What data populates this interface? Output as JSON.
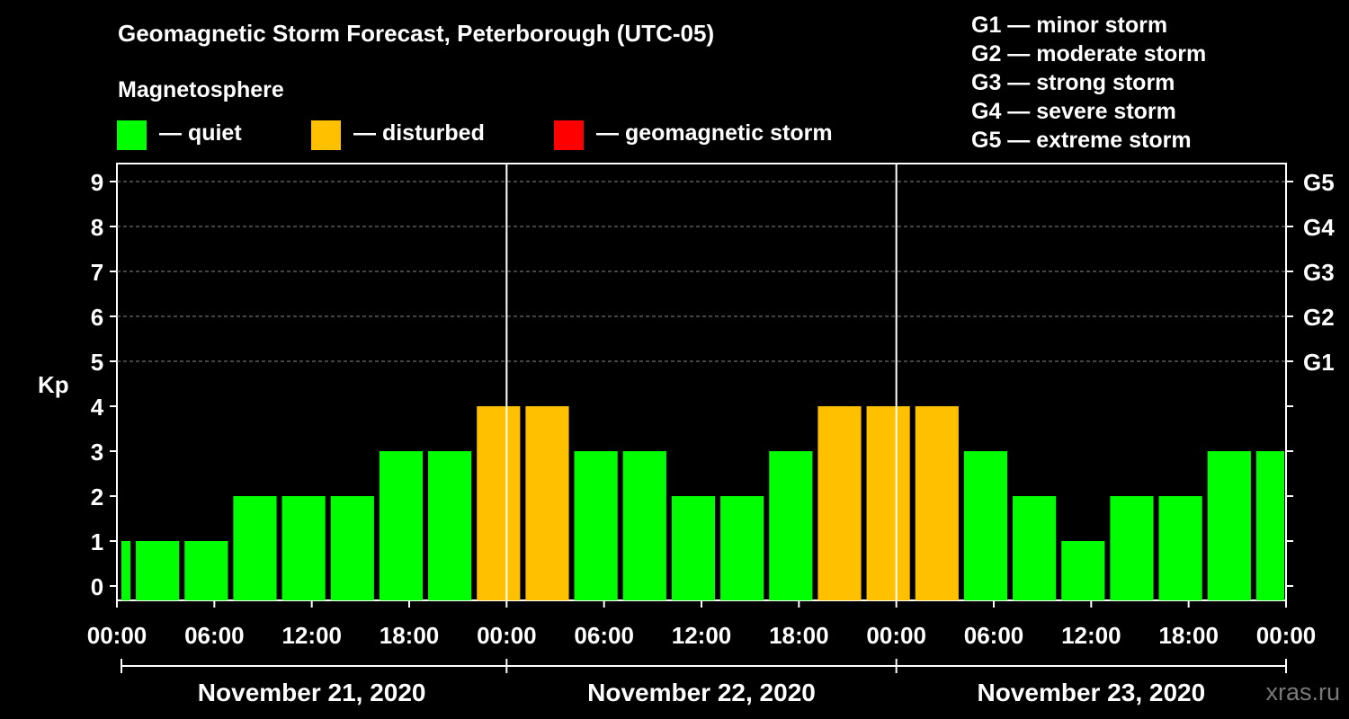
{
  "title": "Geomagnetic Storm Forecast, Peterborough (UTC-05)",
  "subtitle": "Magnetosphere",
  "legend": [
    {
      "label": "— quiet",
      "color": "#00ff00"
    },
    {
      "label": "— disturbed",
      "color": "#ffc000"
    },
    {
      "label": "— geomagnetic storm",
      "color": "#ff0000"
    }
  ],
  "storm_scale": [
    "G1 — minor storm",
    "G2 — moderate storm",
    "G3 — strong storm",
    "G4 — severe storm",
    "G5 — extreme storm"
  ],
  "watermark": "xras.ru",
  "chart_data": {
    "type": "bar",
    "title": "Geomagnetic Storm Forecast, Peterborough (UTC-05)",
    "ylabel": "Kp",
    "ylim": [
      0,
      9
    ],
    "yticks": [
      "0",
      "1",
      "2",
      "3",
      "4",
      "5",
      "6",
      "7",
      "8",
      "9"
    ],
    "right_axis": [
      {
        "kp": 5,
        "label": "G1"
      },
      {
        "kp": 6,
        "label": "G2"
      },
      {
        "kp": 7,
        "label": "G3"
      },
      {
        "kp": 8,
        "label": "G4"
      },
      {
        "kp": 9,
        "label": "G5"
      }
    ],
    "grid": true,
    "x_range_hours": [
      0,
      72
    ],
    "xtick_labels": [
      "00:00",
      "06:00",
      "12:00",
      "18:00",
      "00:00",
      "06:00",
      "12:00",
      "18:00",
      "00:00",
      "06:00",
      "12:00",
      "18:00",
      "00:00"
    ],
    "dates": [
      "November 21, 2020",
      "November 22, 2020",
      "November 23, 2020"
    ],
    "bars": [
      {
        "start": 0,
        "end": 1,
        "kp": 1,
        "status": "quiet"
      },
      {
        "start": 1,
        "end": 4,
        "kp": 1,
        "status": "quiet"
      },
      {
        "start": 4,
        "end": 7,
        "kp": 1,
        "status": "quiet"
      },
      {
        "start": 7,
        "end": 10,
        "kp": 2,
        "status": "quiet"
      },
      {
        "start": 10,
        "end": 13,
        "kp": 2,
        "status": "quiet"
      },
      {
        "start": 13,
        "end": 16,
        "kp": 2,
        "status": "quiet"
      },
      {
        "start": 16,
        "end": 19,
        "kp": 3,
        "status": "quiet"
      },
      {
        "start": 19,
        "end": 22,
        "kp": 3,
        "status": "quiet"
      },
      {
        "start": 22,
        "end": 25,
        "kp": 4,
        "status": "disturbed"
      },
      {
        "start": 25,
        "end": 28,
        "kp": 4,
        "status": "disturbed"
      },
      {
        "start": 28,
        "end": 31,
        "kp": 3,
        "status": "quiet"
      },
      {
        "start": 31,
        "end": 34,
        "kp": 3,
        "status": "quiet"
      },
      {
        "start": 34,
        "end": 37,
        "kp": 2,
        "status": "quiet"
      },
      {
        "start": 37,
        "end": 40,
        "kp": 2,
        "status": "quiet"
      },
      {
        "start": 40,
        "end": 43,
        "kp": 3,
        "status": "quiet"
      },
      {
        "start": 43,
        "end": 46,
        "kp": 4,
        "status": "disturbed"
      },
      {
        "start": 46,
        "end": 49,
        "kp": 4,
        "status": "disturbed"
      },
      {
        "start": 49,
        "end": 52,
        "kp": 4,
        "status": "disturbed"
      },
      {
        "start": 52,
        "end": 55,
        "kp": 3,
        "status": "quiet"
      },
      {
        "start": 55,
        "end": 58,
        "kp": 2,
        "status": "quiet"
      },
      {
        "start": 58,
        "end": 61,
        "kp": 1,
        "status": "quiet"
      },
      {
        "start": 61,
        "end": 64,
        "kp": 2,
        "status": "quiet"
      },
      {
        "start": 64,
        "end": 67,
        "kp": 2,
        "status": "quiet"
      },
      {
        "start": 67,
        "end": 70,
        "kp": 3,
        "status": "quiet"
      },
      {
        "start": 70,
        "end": 72,
        "kp": 3,
        "status": "quiet"
      }
    ]
  }
}
